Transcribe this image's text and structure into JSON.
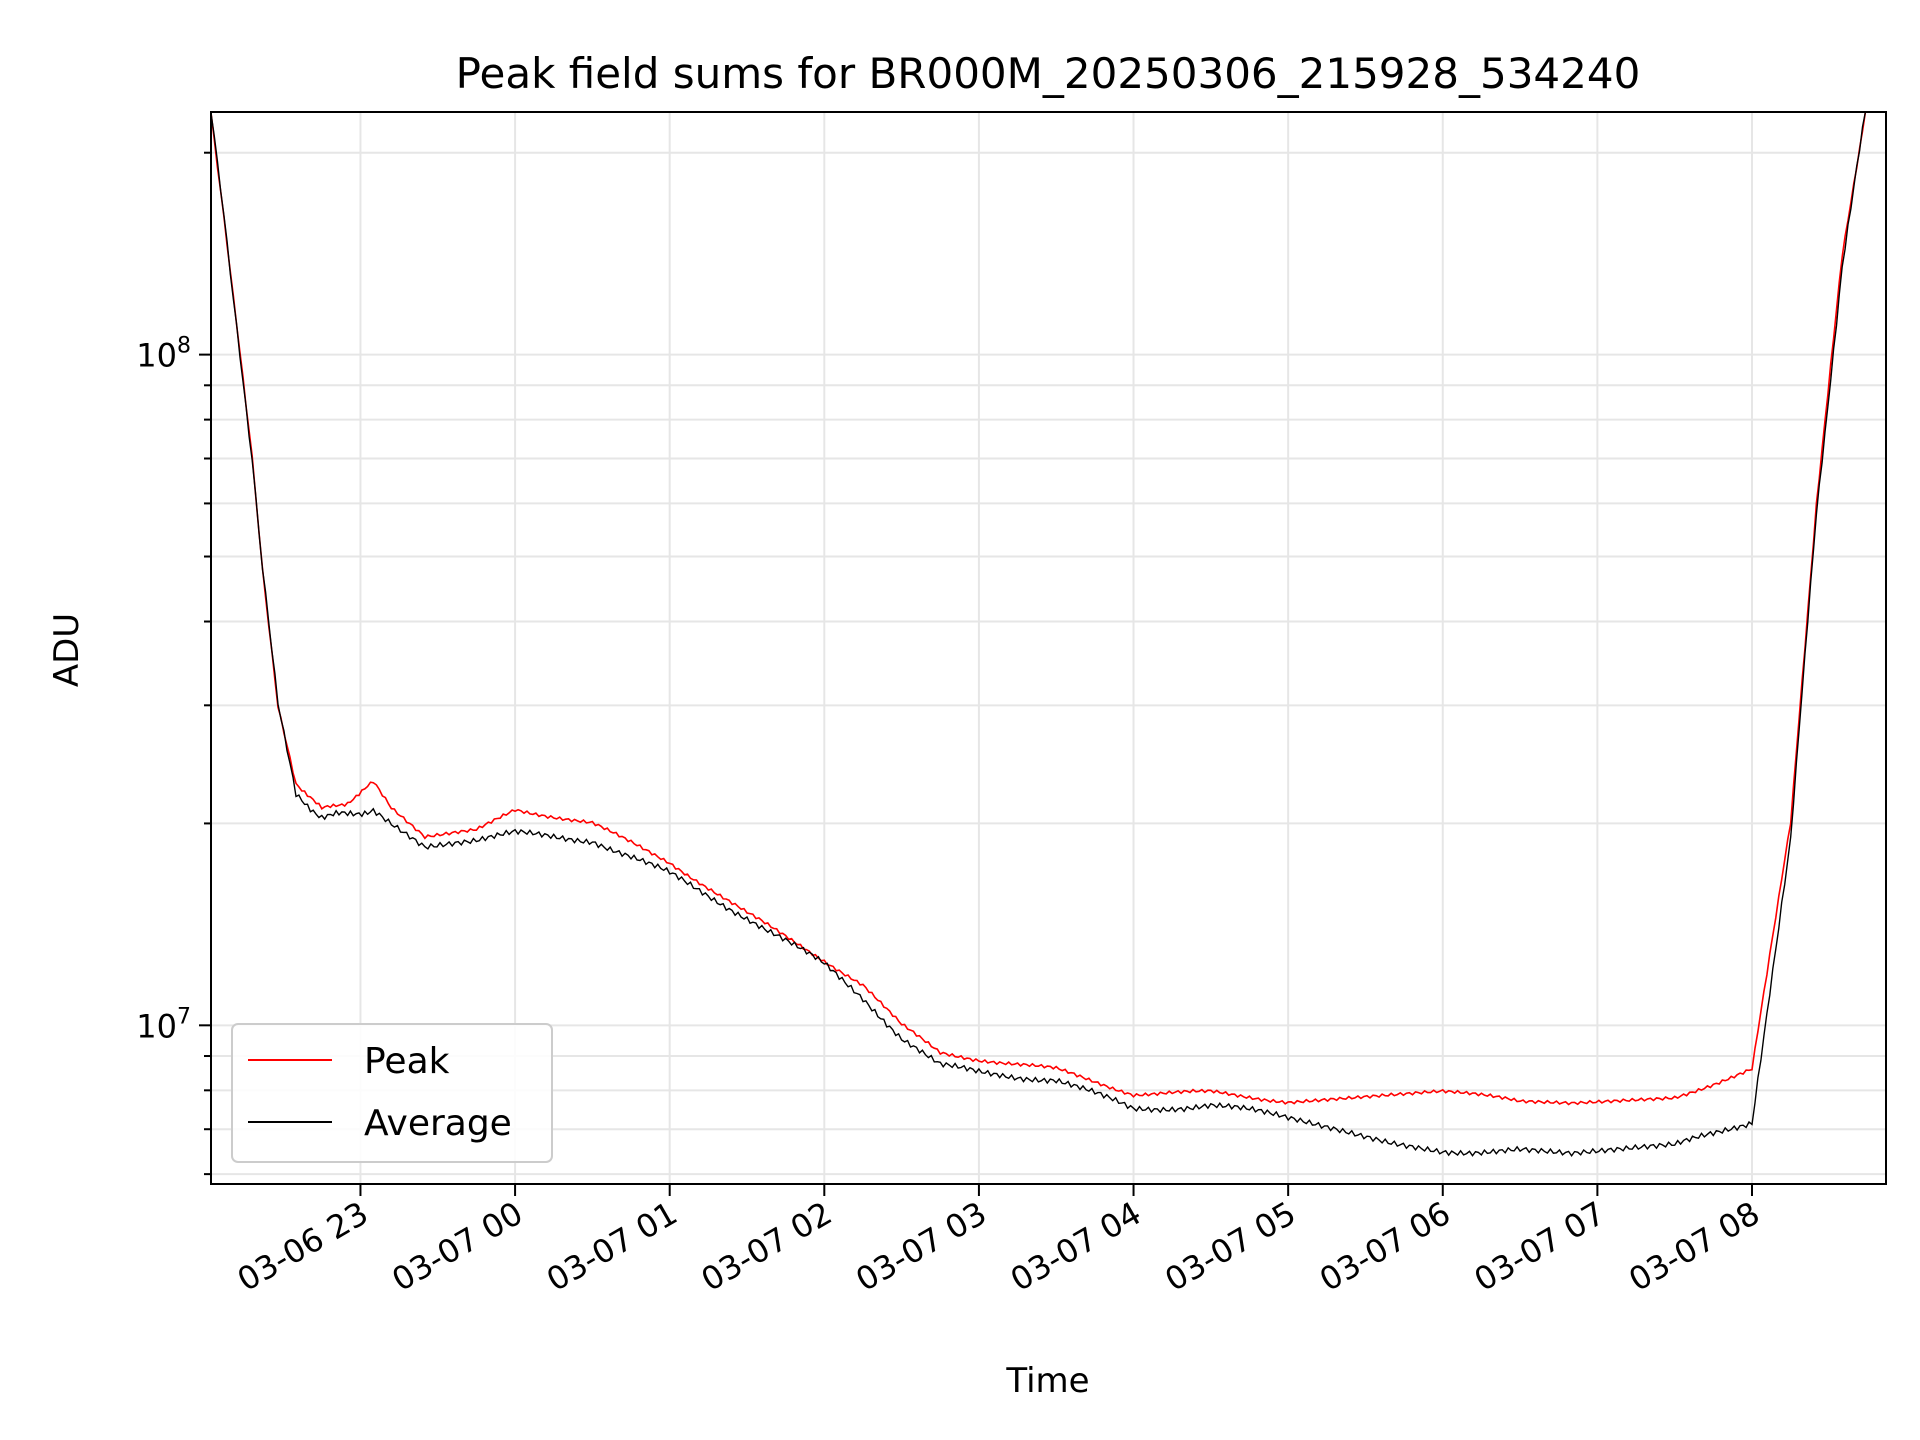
{
  "chart_data": {
    "type": "line",
    "title": "Peak field sums for BR000M_20250306_215928_534240",
    "xlabel": "Time",
    "ylabel": "ADU",
    "y_scale": "log",
    "ylim": [
      5800000,
      230000000
    ],
    "x_range": [
      "2025-03-06 22:02",
      "2025-03-07 08:52"
    ],
    "x_ticks": [
      "03-06 23",
      "03-07 00",
      "03-07 01",
      "03-07 02",
      "03-07 03",
      "03-07 04",
      "03-07 05",
      "03-07 06",
      "03-07 07",
      "03-07 08"
    ],
    "x_tick_times": [
      "2025-03-06 23:00",
      "2025-03-07 00:00",
      "2025-03-07 01:00",
      "2025-03-07 02:00",
      "2025-03-07 03:00",
      "2025-03-07 04:00",
      "2025-03-07 05:00",
      "2025-03-07 06:00",
      "2025-03-07 07:00",
      "2025-03-07 08:00"
    ],
    "y_ticks": [
      {
        "value": 10000000,
        "label": "10^7"
      },
      {
        "value": 100000000,
        "label": "10^8"
      }
    ],
    "grid": true,
    "legend_position": "lower-left",
    "series": [
      {
        "name": "Peak",
        "color": "#ff0000",
        "points": [
          [
            "2025-03-06 22:02",
            230000000
          ],
          [
            "2025-03-06 22:07",
            160000000
          ],
          [
            "2025-03-06 22:12",
            110000000
          ],
          [
            "2025-03-06 22:18",
            70000000
          ],
          [
            "2025-03-06 22:22",
            48000000
          ],
          [
            "2025-03-06 22:28",
            30000000
          ],
          [
            "2025-03-06 22:35",
            23000000
          ],
          [
            "2025-03-06 22:45",
            21000000
          ],
          [
            "2025-03-06 22:55",
            21500000
          ],
          [
            "2025-03-06 23:05",
            23000000
          ],
          [
            "2025-03-06 23:12",
            21000000
          ],
          [
            "2025-03-06 23:25",
            19000000
          ],
          [
            "2025-03-06 23:45",
            19500000
          ],
          [
            "2025-03-07 00:00",
            21000000
          ],
          [
            "2025-03-07 00:30",
            20000000
          ],
          [
            "2025-03-07 01:00",
            17500000
          ],
          [
            "2025-03-07 01:30",
            14700000
          ],
          [
            "2025-03-07 02:00",
            12500000
          ],
          [
            "2025-03-07 02:15",
            11500000
          ],
          [
            "2025-03-07 02:30",
            10000000
          ],
          [
            "2025-03-07 02:45",
            9100000
          ],
          [
            "2025-03-07 03:00",
            8900000
          ],
          [
            "2025-03-07 03:30",
            8600000
          ],
          [
            "2025-03-07 04:00",
            7900000
          ],
          [
            "2025-03-07 04:30",
            7950000
          ],
          [
            "2025-03-07 05:00",
            7700000
          ],
          [
            "2025-03-07 05:40",
            7900000
          ],
          [
            "2025-03-07 06:00",
            8000000
          ],
          [
            "2025-03-07 06:30",
            7700000
          ],
          [
            "2025-03-07 06:50",
            7650000
          ],
          [
            "2025-03-07 07:30",
            7800000
          ],
          [
            "2025-03-07 08:00",
            8600000
          ],
          [
            "2025-03-07 08:15",
            20000000
          ],
          [
            "2025-03-07 08:25",
            60000000
          ],
          [
            "2025-03-07 08:35",
            140000000
          ],
          [
            "2025-03-07 08:44",
            230000000
          ]
        ]
      },
      {
        "name": "Average",
        "color": "#000000",
        "points": [
          [
            "2025-03-06 22:02",
            230000000
          ],
          [
            "2025-03-06 22:07",
            160000000
          ],
          [
            "2025-03-06 22:12",
            110000000
          ],
          [
            "2025-03-06 22:18",
            70000000
          ],
          [
            "2025-03-06 22:22",
            48000000
          ],
          [
            "2025-03-06 22:28",
            30000000
          ],
          [
            "2025-03-06 22:35",
            22000000
          ],
          [
            "2025-03-06 22:45",
            20500000
          ],
          [
            "2025-03-06 22:55",
            20600000
          ],
          [
            "2025-03-06 23:05",
            21000000
          ],
          [
            "2025-03-06 23:12",
            20000000
          ],
          [
            "2025-03-06 23:25",
            18500000
          ],
          [
            "2025-03-06 23:45",
            18900000
          ],
          [
            "2025-03-07 00:00",
            19300000
          ],
          [
            "2025-03-07 00:30",
            18900000
          ],
          [
            "2025-03-07 01:00",
            16800000
          ],
          [
            "2025-03-07 01:30",
            14500000
          ],
          [
            "2025-03-07 02:00",
            12300000
          ],
          [
            "2025-03-07 02:15",
            11000000
          ],
          [
            "2025-03-07 02:30",
            9600000
          ],
          [
            "2025-03-07 02:45",
            8700000
          ],
          [
            "2025-03-07 03:00",
            8500000
          ],
          [
            "2025-03-07 03:30",
            8300000
          ],
          [
            "2025-03-07 04:00",
            7500000
          ],
          [
            "2025-03-07 04:30",
            7600000
          ],
          [
            "2025-03-07 05:00",
            7300000
          ],
          [
            "2025-03-07 05:40",
            6700000
          ],
          [
            "2025-03-07 06:00",
            6500000
          ],
          [
            "2025-03-07 06:30",
            6500000
          ],
          [
            "2025-03-07 06:50",
            6400000
          ],
          [
            "2025-03-07 07:30",
            6600000
          ],
          [
            "2025-03-07 08:00",
            7200000
          ],
          [
            "2025-03-07 08:15",
            19000000
          ],
          [
            "2025-03-07 08:25",
            58000000
          ],
          [
            "2025-03-07 08:35",
            135000000
          ],
          [
            "2025-03-07 08:44",
            230000000
          ]
        ]
      }
    ]
  }
}
